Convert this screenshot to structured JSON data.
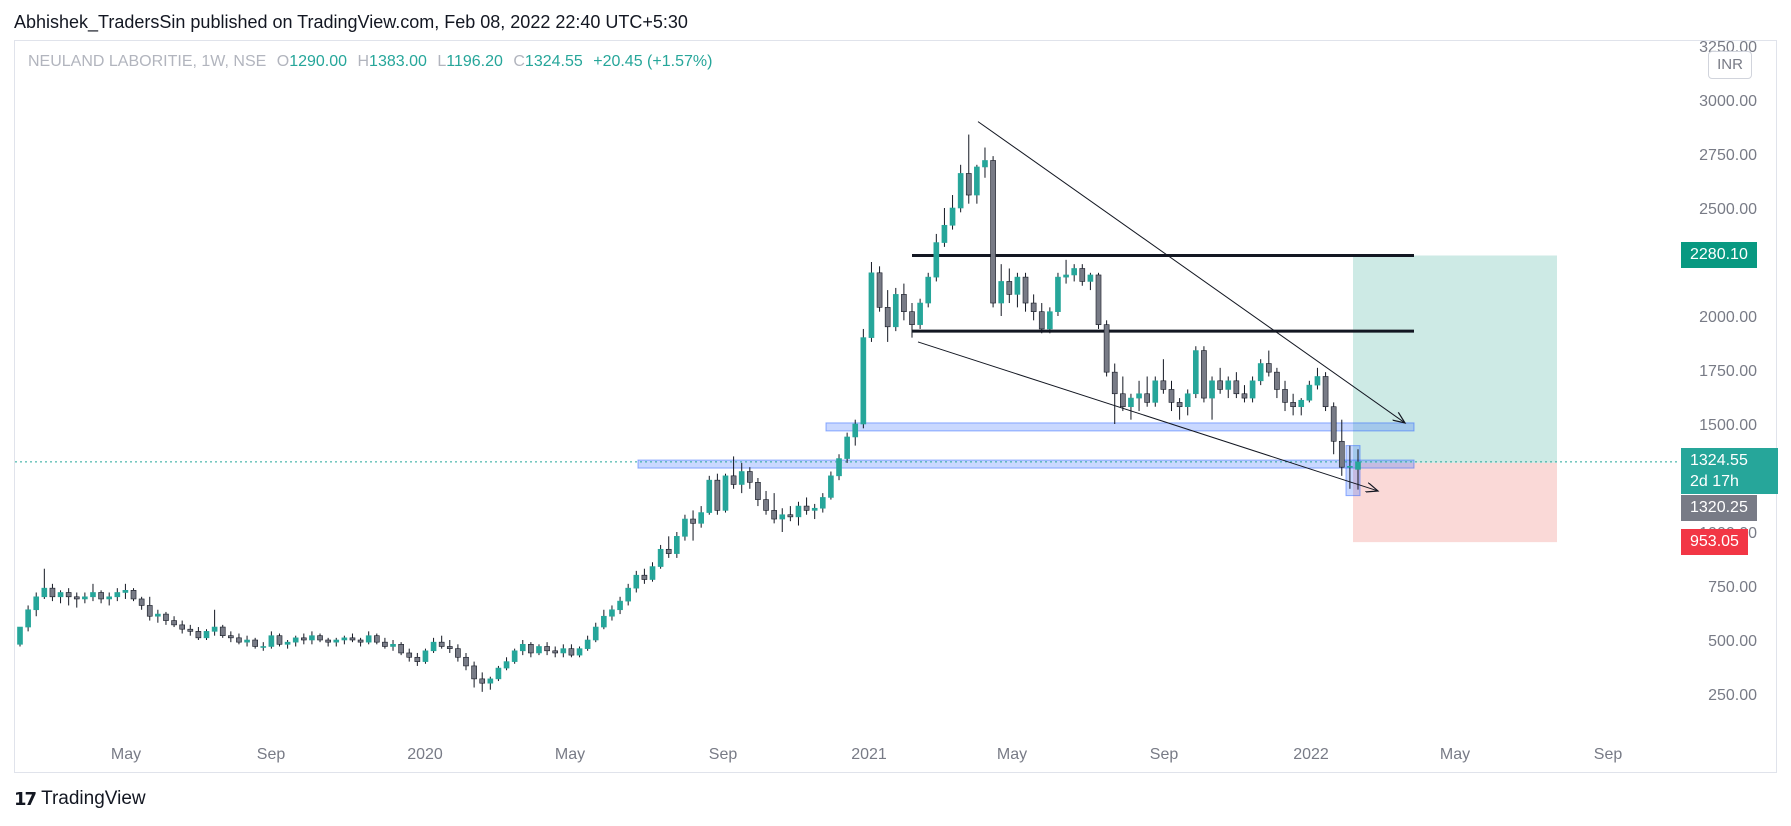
{
  "header": {
    "publisher": "Abhishek_TradersSin published on TradingView.com, Feb 08, 2022 22:40 UTC+5:30"
  },
  "legend": {
    "symbol": "NEULAND LABORITIE, 1W, NSE",
    "open_label": "O",
    "open": "1290.00",
    "high_label": "H",
    "high": "1383.00",
    "low_label": "L",
    "low": "1196.20",
    "close_label": "C",
    "close": "1324.55",
    "change": "+20.45 (+1.57%)"
  },
  "price_axis": {
    "currency": "INR",
    "ticks": [
      "3250.00",
      "3000.00",
      "2750.00",
      "2500.00",
      "2250.00",
      "2000.00",
      "1750.00",
      "1500.00",
      "1250.00",
      "1000.00",
      "750.00",
      "500.00",
      "250.00"
    ]
  },
  "time_axis": {
    "ticks": [
      "May",
      "Sep",
      "2020",
      "May",
      "Sep",
      "2021",
      "May",
      "Sep",
      "2022",
      "May",
      "Sep"
    ]
  },
  "price_tags": {
    "target": "2280.10",
    "current_price": "1324.55",
    "countdown": "2d 17h",
    "entry": "1320.25",
    "stop": "953.05"
  },
  "footer": {
    "brand": "TradingView",
    "logo": "tradingview-logo"
  },
  "colors": {
    "up": "#26a69a",
    "down": "#787b86",
    "target_zone": "#cdeae5",
    "stop_zone": "#fad9d7",
    "zone_blue": "#2962ff",
    "stop_tag": "#f23645",
    "entry_tag": "#787b86"
  },
  "chart_data": {
    "type": "candlestick",
    "symbol": "NEULAND LABORITIE",
    "interval": "1W",
    "exchange": "NSE",
    "ylim": [
      250,
      3250
    ],
    "horizontal_levels": [
      2280.1,
      1930,
      1490,
      1320
    ],
    "position": {
      "target": 2280.1,
      "entry": 1320.25,
      "stop": 953.05,
      "current": 1324.55
    },
    "trendlines": [
      {
        "from": {
          "x": "2021-04",
          "y": 2900
        },
        "to": {
          "x": "2022-03",
          "y": 1500
        }
      },
      {
        "from": {
          "x": "2021-02",
          "y": 1900
        },
        "to": {
          "x": "2022-03",
          "y": 1180
        }
      }
    ],
    "candles_approx": [
      [
        480,
        560,
        470,
        560
      ],
      [
        560,
        660,
        540,
        640
      ],
      [
        640,
        720,
        610,
        700
      ],
      [
        700,
        830,
        690,
        740
      ],
      [
        740,
        760,
        680,
        700
      ],
      [
        700,
        730,
        670,
        720
      ],
      [
        720,
        740,
        660,
        700
      ],
      [
        700,
        720,
        650,
        690
      ],
      [
        690,
        720,
        670,
        700
      ],
      [
        700,
        760,
        680,
        720
      ],
      [
        720,
        730,
        670,
        690
      ],
      [
        690,
        720,
        660,
        700
      ],
      [
        700,
        740,
        680,
        720
      ],
      [
        720,
        760,
        690,
        730
      ],
      [
        730,
        740,
        680,
        690
      ],
      [
        690,
        700,
        640,
        660
      ],
      [
        660,
        700,
        590,
        610
      ],
      [
        610,
        640,
        580,
        620
      ],
      [
        620,
        630,
        570,
        590
      ],
      [
        590,
        610,
        560,
        570
      ],
      [
        570,
        590,
        530,
        550
      ],
      [
        550,
        570,
        520,
        540
      ],
      [
        540,
        560,
        500,
        510
      ],
      [
        510,
        550,
        500,
        540
      ],
      [
        540,
        640,
        520,
        560
      ],
      [
        560,
        570,
        510,
        520
      ],
      [
        520,
        540,
        490,
        510
      ],
      [
        510,
        530,
        480,
        490
      ],
      [
        490,
        520,
        470,
        500
      ],
      [
        500,
        510,
        460,
        470
      ],
      [
        470,
        490,
        450,
        470
      ],
      [
        470,
        540,
        460,
        520
      ],
      [
        520,
        530,
        470,
        480
      ],
      [
        480,
        500,
        460,
        490
      ],
      [
        490,
        520,
        470,
        510
      ],
      [
        510,
        530,
        480,
        500
      ],
      [
        500,
        540,
        480,
        520
      ],
      [
        520,
        530,
        490,
        500
      ],
      [
        500,
        510,
        470,
        490
      ],
      [
        490,
        510,
        470,
        500
      ],
      [
        500,
        520,
        480,
        510
      ],
      [
        510,
        530,
        490,
        500
      ],
      [
        500,
        510,
        470,
        490
      ],
      [
        490,
        540,
        480,
        520
      ],
      [
        520,
        530,
        480,
        490
      ],
      [
        490,
        510,
        460,
        470
      ],
      [
        470,
        500,
        450,
        480
      ],
      [
        480,
        490,
        430,
        440
      ],
      [
        440,
        460,
        400,
        420
      ],
      [
        420,
        440,
        380,
        400
      ],
      [
        400,
        460,
        390,
        450
      ],
      [
        450,
        510,
        440,
        490
      ],
      [
        490,
        520,
        460,
        470
      ],
      [
        470,
        500,
        440,
        460
      ],
      [
        460,
        480,
        400,
        420
      ],
      [
        420,
        440,
        360,
        380
      ],
      [
        380,
        400,
        280,
        320
      ],
      [
        320,
        350,
        260,
        300
      ],
      [
        300,
        330,
        270,
        320
      ],
      [
        320,
        380,
        310,
        370
      ],
      [
        370,
        420,
        360,
        400
      ],
      [
        400,
        460,
        390,
        450
      ],
      [
        450,
        500,
        430,
        480
      ],
      [
        480,
        490,
        420,
        440
      ],
      [
        440,
        480,
        430,
        470
      ],
      [
        470,
        490,
        430,
        450
      ],
      [
        450,
        470,
        420,
        440
      ],
      [
        440,
        480,
        420,
        460
      ],
      [
        460,
        480,
        420,
        430
      ],
      [
        430,
        470,
        420,
        460
      ],
      [
        460,
        520,
        450,
        500
      ],
      [
        500,
        580,
        490,
        560
      ],
      [
        560,
        640,
        550,
        610
      ],
      [
        610,
        660,
        590,
        640
      ],
      [
        640,
        700,
        620,
        680
      ],
      [
        680,
        760,
        660,
        740
      ],
      [
        740,
        820,
        720,
        800
      ],
      [
        800,
        830,
        760,
        780
      ],
      [
        780,
        860,
        770,
        840
      ],
      [
        840,
        940,
        830,
        920
      ],
      [
        920,
        980,
        880,
        900
      ],
      [
        900,
        1000,
        880,
        980
      ],
      [
        980,
        1080,
        960,
        1060
      ],
      [
        1060,
        1100,
        960,
        1040
      ],
      [
        1040,
        1120,
        1020,
        1090
      ],
      [
        1090,
        1260,
        1080,
        1240
      ],
      [
        1240,
        1270,
        1080,
        1100
      ],
      [
        1100,
        1270,
        1090,
        1260
      ],
      [
        1260,
        1350,
        1200,
        1220
      ],
      [
        1220,
        1320,
        1180,
        1280
      ],
      [
        1280,
        1300,
        1200,
        1230
      ],
      [
        1230,
        1250,
        1120,
        1150
      ],
      [
        1150,
        1190,
        1080,
        1100
      ],
      [
        1100,
        1180,
        1040,
        1060
      ],
      [
        1060,
        1110,
        1000,
        1080
      ],
      [
        1080,
        1120,
        1050,
        1070
      ],
      [
        1070,
        1140,
        1030,
        1120
      ],
      [
        1120,
        1160,
        1080,
        1100
      ],
      [
        1100,
        1130,
        1060,
        1110
      ],
      [
        1110,
        1180,
        1090,
        1160
      ],
      [
        1160,
        1280,
        1150,
        1260
      ],
      [
        1260,
        1360,
        1240,
        1340
      ],
      [
        1340,
        1460,
        1320,
        1440
      ],
      [
        1440,
        1520,
        1400,
        1500
      ],
      [
        1500,
        1940,
        1480,
        1900
      ],
      [
        1900,
        2250,
        1880,
        2200
      ],
      [
        2200,
        2230,
        2020,
        2040
      ],
      [
        2040,
        2120,
        1880,
        1950
      ],
      [
        1950,
        2130,
        1930,
        2100
      ],
      [
        2100,
        2150,
        1980,
        2020
      ],
      [
        2020,
        2060,
        1900,
        1960
      ],
      [
        1960,
        2080,
        1940,
        2060
      ],
      [
        2060,
        2200,
        2040,
        2180
      ],
      [
        2180,
        2380,
        2160,
        2340
      ],
      [
        2340,
        2500,
        2320,
        2420
      ],
      [
        2420,
        2560,
        2400,
        2500
      ],
      [
        2500,
        2700,
        2480,
        2660
      ],
      [
        2660,
        2840,
        2520,
        2560
      ],
      [
        2560,
        2700,
        2520,
        2690
      ],
      [
        2690,
        2780,
        2640,
        2720
      ],
      [
        2720,
        2740,
        2040,
        2060
      ],
      [
        2060,
        2240,
        2000,
        2160
      ],
      [
        2160,
        2220,
        2060,
        2100
      ],
      [
        2100,
        2200,
        2040,
        2180
      ],
      [
        2180,
        2200,
        2020,
        2060
      ],
      [
        2060,
        2100,
        1980,
        2020
      ],
      [
        2020,
        2060,
        1920,
        1940
      ],
      [
        1940,
        2040,
        1920,
        2020
      ],
      [
        2020,
        2200,
        2000,
        2180
      ],
      [
        2180,
        2260,
        2150,
        2190
      ],
      [
        2190,
        2240,
        2160,
        2220
      ],
      [
        2220,
        2240,
        2140,
        2160
      ],
      [
        2160,
        2200,
        2120,
        2190
      ],
      [
        2190,
        2200,
        1940,
        1960
      ],
      [
        1960,
        1980,
        1720,
        1740
      ],
      [
        1740,
        1780,
        1500,
        1640
      ],
      [
        1640,
        1720,
        1560,
        1580
      ],
      [
        1580,
        1640,
        1520,
        1620
      ],
      [
        1620,
        1700,
        1560,
        1640
      ],
      [
        1640,
        1720,
        1580,
        1600
      ],
      [
        1600,
        1720,
        1580,
        1700
      ],
      [
        1700,
        1800,
        1640,
        1660
      ],
      [
        1660,
        1700,
        1560,
        1600
      ],
      [
        1600,
        1620,
        1520,
        1580
      ],
      [
        1580,
        1660,
        1540,
        1640
      ],
      [
        1640,
        1860,
        1620,
        1840
      ],
      [
        1840,
        1860,
        1600,
        1620
      ],
      [
        1620,
        1720,
        1520,
        1700
      ],
      [
        1700,
        1760,
        1640,
        1660
      ],
      [
        1660,
        1720,
        1620,
        1700
      ],
      [
        1700,
        1740,
        1620,
        1640
      ],
      [
        1640,
        1680,
        1600,
        1620
      ],
      [
        1620,
        1720,
        1600,
        1700
      ],
      [
        1700,
        1800,
        1680,
        1780
      ],
      [
        1780,
        1840,
        1720,
        1740
      ],
      [
        1740,
        1760,
        1620,
        1660
      ],
      [
        1660,
        1700,
        1560,
        1600
      ],
      [
        1600,
        1640,
        1540,
        1580
      ],
      [
        1580,
        1620,
        1540,
        1610
      ],
      [
        1610,
        1700,
        1600,
        1680
      ],
      [
        1680,
        1760,
        1660,
        1720
      ],
      [
        1720,
        1740,
        1560,
        1580
      ],
      [
        1580,
        1600,
        1360,
        1420
      ],
      [
        1420,
        1520,
        1260,
        1300
      ],
      [
        1300,
        1400,
        1200,
        1304
      ],
      [
        1290,
        1383,
        1196,
        1324
      ]
    ]
  }
}
